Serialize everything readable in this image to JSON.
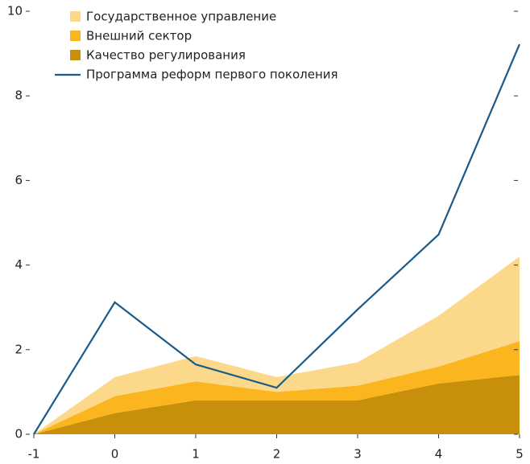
{
  "chart_data": {
    "type": "stacked-area-line",
    "x": [
      -1,
      0,
      1,
      2,
      3,
      4,
      5
    ],
    "series": [
      {
        "name": "Качество регулирования",
        "color": "#c8900a",
        "values": [
          0,
          0.5,
          0.8,
          0.8,
          0.8,
          1.2,
          1.4
        ]
      },
      {
        "name": "Внешний сектор",
        "color": "#fbb51f",
        "values": [
          0,
          0.4,
          0.45,
          0.2,
          0.35,
          0.4,
          0.8
        ]
      },
      {
        "name": "Государственное управление",
        "color": "#fcd98a",
        "values": [
          0,
          0.45,
          0.6,
          0.35,
          0.55,
          1.2,
          2.0
        ]
      },
      {
        "name": "Программа реформ первого поколения",
        "color": "#1a5a8a",
        "type": "line",
        "values": [
          0,
          3.12,
          1.65,
          1.1,
          2.95,
          4.72,
          9.22
        ]
      }
    ],
    "xlim": [
      -1,
      5
    ],
    "xticks": [
      -1,
      0,
      1,
      2,
      3,
      4,
      5
    ],
    "ylim": [
      0,
      10
    ],
    "yticks": [
      0,
      2,
      4,
      6,
      8,
      10
    ]
  }
}
